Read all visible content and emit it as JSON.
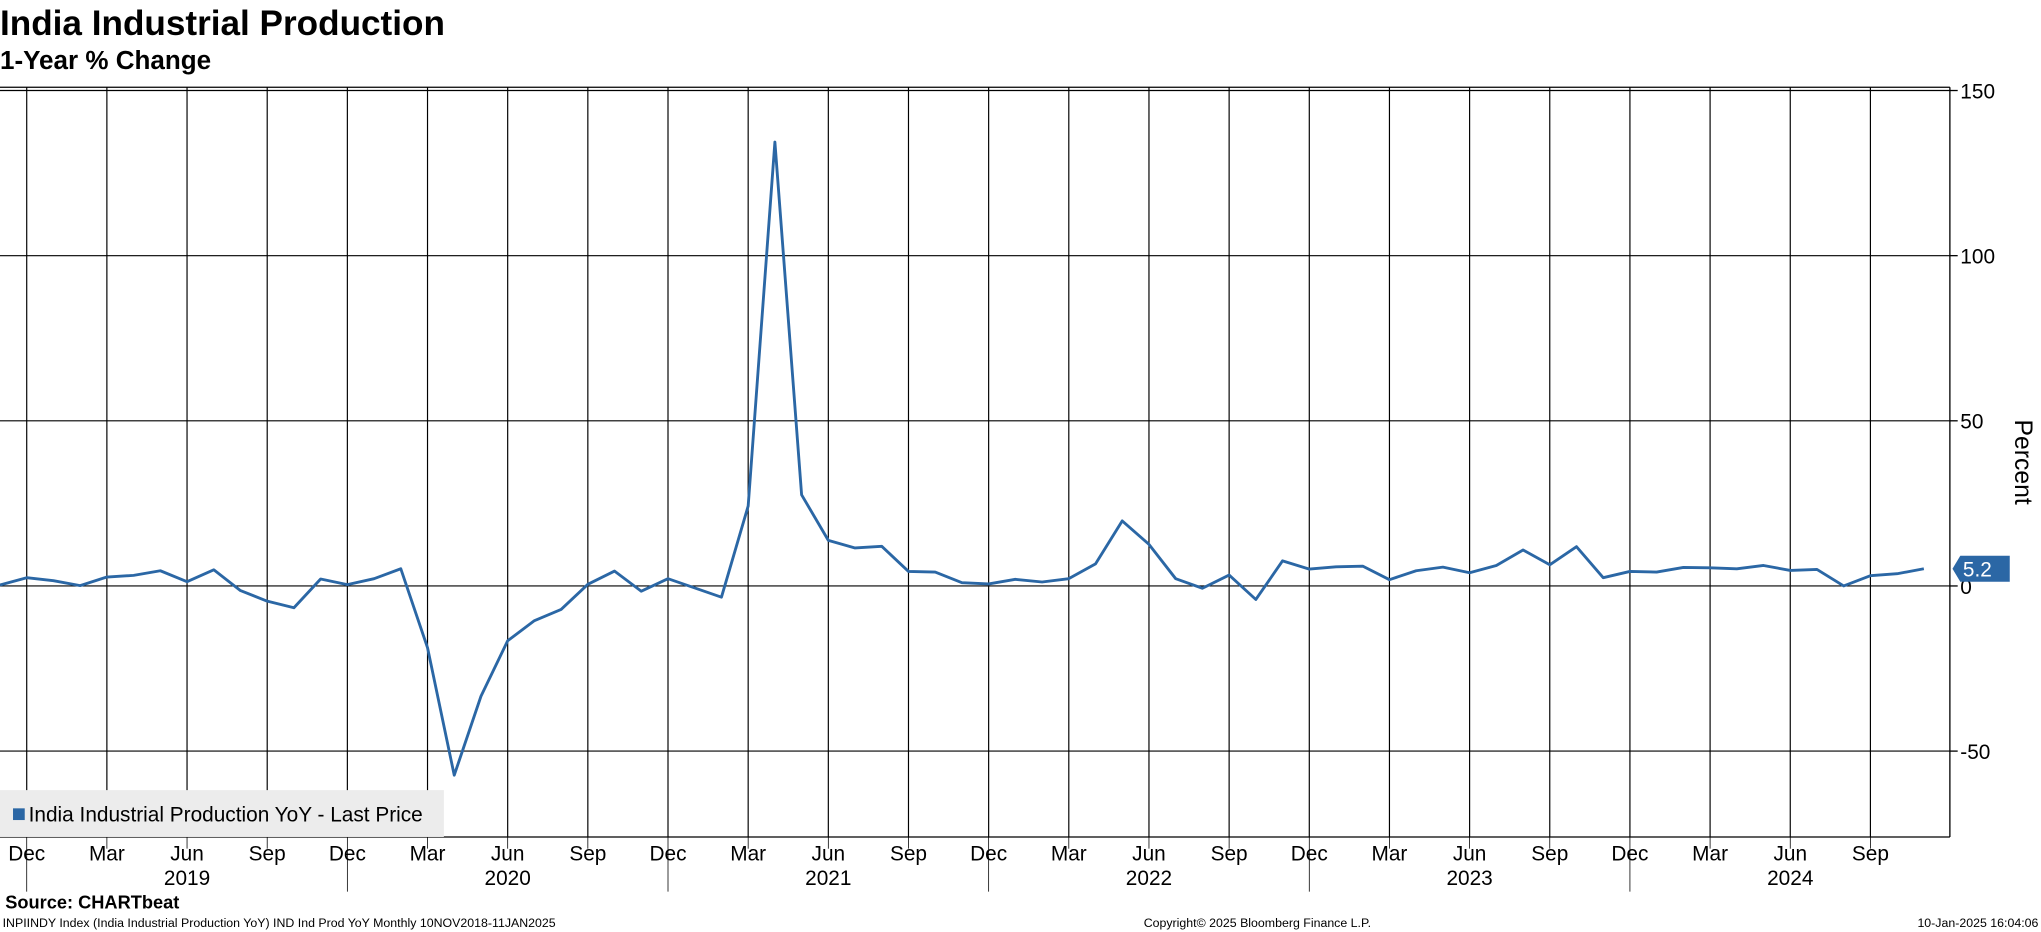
{
  "chart_data": {
    "type": "line",
    "title": "India Industrial Production",
    "subtitle": "1-Year % Change",
    "y_axis_label": "Percent",
    "source": "Source: CHARTbeat",
    "footer_left": "INPIINDY Index (India Industrial Production  YoY) IND Ind Prod YoY  Monthly 10NOV2018-11JAN2025",
    "footer_center": "Copyright© 2025 Bloomberg Finance L.P.",
    "footer_right": "10-Jan-2025 16:04:06",
    "x": [
      "2018-11",
      "2018-12",
      "2019-01",
      "2019-02",
      "2019-03",
      "2019-04",
      "2019-05",
      "2019-06",
      "2019-07",
      "2019-08",
      "2019-09",
      "2019-10",
      "2019-11",
      "2019-12",
      "2020-01",
      "2020-02",
      "2020-03",
      "2020-04",
      "2020-05",
      "2020-06",
      "2020-07",
      "2020-08",
      "2020-09",
      "2020-10",
      "2020-11",
      "2020-12",
      "2021-01",
      "2021-02",
      "2021-03",
      "2021-04",
      "2021-05",
      "2021-06",
      "2021-07",
      "2021-08",
      "2021-09",
      "2021-10",
      "2021-11",
      "2021-12",
      "2022-01",
      "2022-02",
      "2022-03",
      "2022-04",
      "2022-05",
      "2022-06",
      "2022-07",
      "2022-08",
      "2022-09",
      "2022-10",
      "2022-11",
      "2022-12",
      "2023-01",
      "2023-02",
      "2023-03",
      "2023-04",
      "2023-05",
      "2023-06",
      "2023-07",
      "2023-08",
      "2023-09",
      "2023-10",
      "2023-11",
      "2023-12",
      "2024-01",
      "2024-02",
      "2024-03",
      "2024-04",
      "2024-05",
      "2024-06",
      "2024-07",
      "2024-08",
      "2024-09",
      "2024-10",
      "2024-11"
    ],
    "series": [
      {
        "name": "India Industrial Production YoY - Last Price",
        "color": "#2b67a5",
        "values": [
          0.3,
          2.5,
          1.6,
          0.1,
          2.7,
          3.2,
          4.6,
          1.3,
          4.9,
          -1.4,
          -4.6,
          -6.6,
          2.1,
          0.4,
          2.2,
          5.2,
          -18.7,
          -57.3,
          -33.4,
          -16.6,
          -10.5,
          -7.1,
          0.5,
          4.5,
          -1.6,
          2.2,
          -0.6,
          -3.4,
          24.2,
          134.4,
          27.6,
          13.8,
          11.5,
          12.0,
          4.4,
          4.2,
          1.0,
          0.6,
          2.0,
          1.2,
          2.2,
          6.7,
          19.7,
          12.6,
          2.2,
          -0.7,
          3.3,
          -4.1,
          7.6,
          5.1,
          5.8,
          6.0,
          1.9,
          4.6,
          5.7,
          4.0,
          6.2,
          10.9,
          6.4,
          11.9,
          2.5,
          4.4,
          4.2,
          5.6,
          5.5,
          5.2,
          6.2,
          4.7,
          5.0,
          0.0,
          3.1,
          3.7,
          5.2
        ]
      }
    ],
    "ylim": [
      -76,
      151
    ],
    "yticks": [
      -50,
      0,
      50,
      100,
      150
    ],
    "xticks": [
      {
        "value": "2018-12",
        "label": "Dec"
      },
      {
        "value": "2019-03",
        "label": "Mar"
      },
      {
        "value": "2019-06",
        "label": "Jun"
      },
      {
        "value": "2019-09",
        "label": "Sep"
      },
      {
        "value": "2019-12",
        "label": "Dec"
      },
      {
        "value": "2020-03",
        "label": "Mar"
      },
      {
        "value": "2020-06",
        "label": "Jun"
      },
      {
        "value": "2020-09",
        "label": "Sep"
      },
      {
        "value": "2020-12",
        "label": "Dec"
      },
      {
        "value": "2021-03",
        "label": "Mar"
      },
      {
        "value": "2021-06",
        "label": "Jun"
      },
      {
        "value": "2021-09",
        "label": "Sep"
      },
      {
        "value": "2021-12",
        "label": "Dec"
      },
      {
        "value": "2022-03",
        "label": "Mar"
      },
      {
        "value": "2022-06",
        "label": "Jun"
      },
      {
        "value": "2022-09",
        "label": "Sep"
      },
      {
        "value": "2022-12",
        "label": "Dec"
      },
      {
        "value": "2023-03",
        "label": "Mar"
      },
      {
        "value": "2023-06",
        "label": "Jun"
      },
      {
        "value": "2023-09",
        "label": "Sep"
      },
      {
        "value": "2023-12",
        "label": "Dec"
      },
      {
        "value": "2024-03",
        "label": "Mar"
      },
      {
        "value": "2024-06",
        "label": "Jun"
      },
      {
        "value": "2024-09",
        "label": "Sep"
      }
    ],
    "year_labels": [
      {
        "value": "2019-06",
        "label": "2019"
      },
      {
        "value": "2020-06",
        "label": "2020"
      },
      {
        "value": "2021-06",
        "label": "2021"
      },
      {
        "value": "2022-06",
        "label": "2022"
      },
      {
        "value": "2023-06",
        "label": "2023"
      },
      {
        "value": "2024-06",
        "label": "2024"
      }
    ],
    "grid": true,
    "legend": "lower left"
  }
}
